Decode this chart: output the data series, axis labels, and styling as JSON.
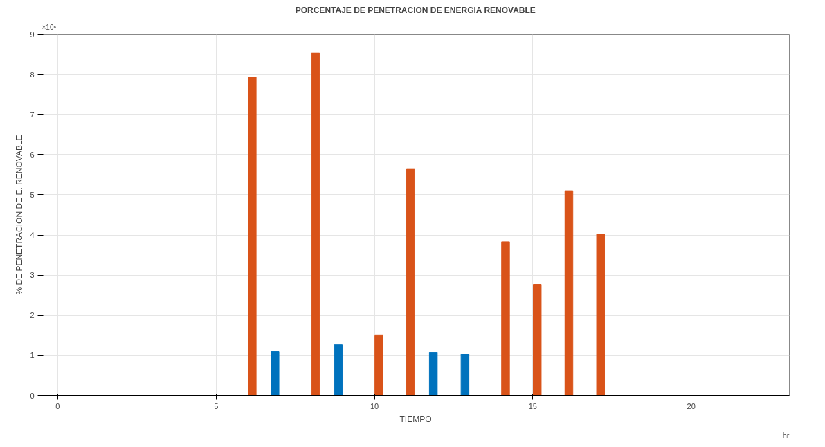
{
  "chart_data": {
    "type": "bar",
    "title": "PORCENTAJE DE PENETRACION DE ENERGIA RENOVABLE",
    "xlabel": "TIEMPO",
    "ylabel": "% DE PENETRACION DE E. RENOVABLE",
    "annotations": [
      "×10⁶",
      "hr"
    ],
    "series": [
      {
        "color": "#d95319",
        "x": [
          6,
          8,
          10,
          11,
          14,
          15,
          16,
          17
        ],
        "values": [
          7.93,
          8.54,
          1.5,
          5.65,
          3.83,
          2.77,
          5.1,
          4.02
        ]
      },
      {
        "color": "#0072bd",
        "x": [
          7,
          9,
          12,
          13
        ],
        "values": [
          1.1,
          1.27,
          1.07,
          1.03
        ]
      }
    ],
    "xlim": [
      -0.5,
      23.1
    ],
    "xticks": [
      0,
      5,
      10,
      15,
      20
    ],
    "ylim": [
      0,
      9
    ],
    "yticks": [
      0,
      1,
      2,
      3,
      4,
      5,
      6,
      7,
      8,
      9
    ],
    "grid": true
  }
}
